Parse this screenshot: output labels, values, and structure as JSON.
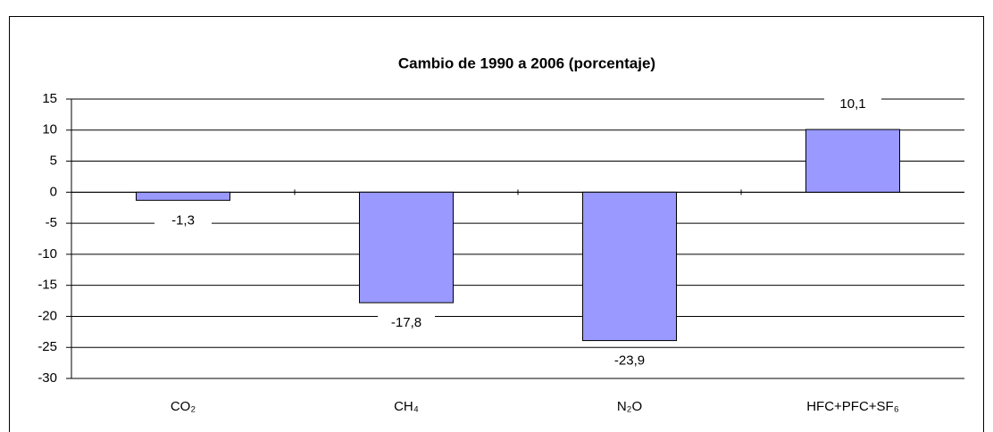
{
  "chart_data": {
    "type": "bar",
    "title": "Cambio de 1990 a 2006 (porcentaje)",
    "categories": [
      "CO₂",
      "CH₄",
      "N₂O",
      "HFC+PFC+SF₆"
    ],
    "values": [
      -1.3,
      -17.8,
      -23.9,
      10.1
    ],
    "value_labels": [
      "-1,3",
      "-17,8",
      "-23,9",
      "10,1"
    ],
    "color": "#9999ff",
    "ylim": [
      -30,
      15
    ],
    "yticks": [
      -30,
      -25,
      -20,
      -15,
      -10,
      -5,
      0,
      5,
      10,
      15
    ],
    "grid": true
  }
}
